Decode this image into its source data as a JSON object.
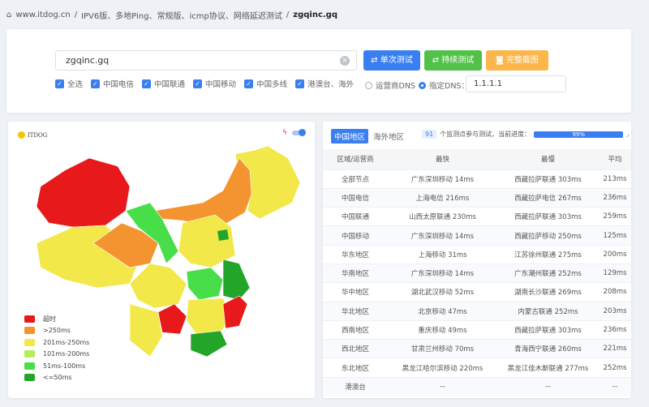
{
  "breadcrumb": {
    "home": "www.itdog.cn",
    "section": "IPV6版、多地Ping、常规版、icmp协议、网络延迟测试",
    "current": "zgqinc.gq"
  },
  "search": {
    "value": "zgqinc.gq"
  },
  "buttons": {
    "single": "单次测试",
    "continuous": "持续测试",
    "screenshot": "完整截图"
  },
  "colors": {
    "blue": "#3a7ff2",
    "green": "#52c148",
    "orange": "#fbb64c"
  },
  "filters": [
    {
      "label": "全选",
      "checked": true
    },
    {
      "label": "中国电信",
      "checked": true
    },
    {
      "label": "中国联通",
      "checked": true
    },
    {
      "label": "中国移动",
      "checked": true
    },
    {
      "label": "中国多线",
      "checked": true
    },
    {
      "label": "港澳台、海外",
      "checked": true
    }
  ],
  "dns": {
    "option1": "运营商DNS",
    "option2": "指定DNS：",
    "selected": "指定DNS",
    "value": "1.1.1.1"
  },
  "map": {
    "logo": "ITDOG",
    "toggle_on": true,
    "legend": [
      {
        "label": "超时",
        "color": "#e8191a"
      },
      {
        "label": ">250ms",
        "color": "#f39431"
      },
      {
        "label": "201ms-250ms",
        "color": "#f2e84a"
      },
      {
        "label": "101ms-200ms",
        "color": "#b5ee5a"
      },
      {
        "label": "51ms-100ms",
        "color": "#48de4a"
      },
      {
        "label": "<=50ms",
        "color": "#23a52a"
      }
    ]
  },
  "results": {
    "tabs": [
      "中国地区",
      "海外地区"
    ],
    "active_tab": "中国地区",
    "node_count": "91",
    "progress_text": "个监测点参与测试，当前进度：",
    "progress": "99%",
    "headers": [
      "区域/运营商",
      "最快",
      "最慢",
      "平均"
    ],
    "rows": [
      [
        "全部节点",
        "广东深圳移动 14ms",
        "西藏拉萨联通 303ms",
        "213ms"
      ],
      [
        "中国电信",
        "上海电信 216ms",
        "西藏拉萨电信 267ms",
        "236ms"
      ],
      [
        "中国联通",
        "山西太原联通 230ms",
        "西藏拉萨联通 303ms",
        "259ms"
      ],
      [
        "中国移动",
        "广东深圳移动 14ms",
        "西藏拉萨移动 250ms",
        "125ms"
      ],
      [
        "华东地区",
        "上海移动 31ms",
        "江苏徐州联通 275ms",
        "200ms"
      ],
      [
        "华南地区",
        "广东深圳移动 14ms",
        "广东潮州联通 252ms",
        "129ms"
      ],
      [
        "华中地区",
        "湖北武汉移动 52ms",
        "湖南长沙联通 269ms",
        "208ms"
      ],
      [
        "华北地区",
        "北京移动 47ms",
        "内蒙古联通 252ms",
        "203ms"
      ],
      [
        "西南地区",
        "重庆移动 49ms",
        "西藏拉萨联通 303ms",
        "236ms"
      ],
      [
        "西北地区",
        "甘肃兰州移动 70ms",
        "青海西宁联通 260ms",
        "221ms"
      ],
      [
        "东北地区",
        "黑龙江哈尔滨移动 220ms",
        "黑龙江佳木斯联通 277ms",
        "252ms"
      ],
      [
        "港澳台",
        "--",
        "--",
        "--"
      ]
    ]
  }
}
